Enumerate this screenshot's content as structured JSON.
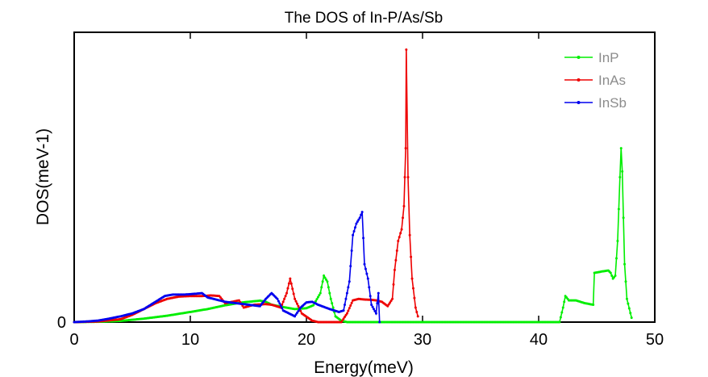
{
  "chart_data": {
    "type": "line",
    "title": "The DOS of In-P/As/Sb",
    "xlabel": "Energy(meV)",
    "ylabel": "DOS(meV-1)",
    "xlim": [
      0,
      50
    ],
    "ylim": [
      0,
      1
    ],
    "x_ticks": [
      0,
      10,
      20,
      30,
      40,
      50
    ],
    "x_tick_labels": [
      "0",
      "10",
      "20",
      "30",
      "40",
      "50"
    ],
    "y_ticks": [
      0
    ],
    "y_tick_labels": [
      "0"
    ],
    "grid": false,
    "legend_position": "top-right",
    "series": [
      {
        "name": "InP",
        "color": "#00ee00",
        "points": [
          [
            0,
            0
          ],
          [
            2,
            0.001
          ],
          [
            4,
            0.004
          ],
          [
            6,
            0.012
          ],
          [
            8,
            0.022
          ],
          [
            10,
            0.035
          ],
          [
            11.5,
            0.045
          ],
          [
            13,
            0.058
          ],
          [
            14.5,
            0.068
          ],
          [
            15.5,
            0.072
          ],
          [
            16,
            0.074
          ],
          [
            16.5,
            0.07
          ],
          [
            17,
            0.06
          ],
          [
            18,
            0.052
          ],
          [
            19,
            0.045
          ],
          [
            20,
            0.048
          ],
          [
            20.6,
            0.058
          ],
          [
            21.2,
            0.1
          ],
          [
            21.5,
            0.16
          ],
          [
            21.8,
            0.14
          ],
          [
            22.1,
            0.08
          ],
          [
            22.5,
            0.02
          ],
          [
            23,
            0.005
          ],
          [
            23.5,
            0
          ],
          [
            30,
            0
          ],
          [
            35,
            0
          ],
          [
            40,
            0
          ],
          [
            41.8,
            0
          ],
          [
            42.1,
            0.05
          ],
          [
            42.3,
            0.09
          ],
          [
            42.6,
            0.075
          ],
          [
            43.2,
            0.075
          ],
          [
            44,
            0.065
          ],
          [
            44.7,
            0.06
          ],
          [
            44.8,
            0.17
          ],
          [
            45.5,
            0.175
          ],
          [
            46,
            0.178
          ],
          [
            46.2,
            0.17
          ],
          [
            46.4,
            0.15
          ],
          [
            46.6,
            0.16
          ],
          [
            46.8,
            0.28
          ],
          [
            47,
            0.5
          ],
          [
            47.1,
            0.6
          ],
          [
            47.2,
            0.52
          ],
          [
            47.4,
            0.2
          ],
          [
            47.6,
            0.08
          ],
          [
            48,
            0.015
          ]
        ]
      },
      {
        "name": "InAs",
        "color": "#ee0000",
        "points": [
          [
            0,
            0
          ],
          [
            2,
            0.002
          ],
          [
            4,
            0.01
          ],
          [
            5,
            0.025
          ],
          [
            6,
            0.045
          ],
          [
            7,
            0.065
          ],
          [
            8,
            0.08
          ],
          [
            9,
            0.088
          ],
          [
            10,
            0.09
          ],
          [
            11,
            0.09
          ],
          [
            11.8,
            0.092
          ],
          [
            12.5,
            0.09
          ],
          [
            13,
            0.065
          ],
          [
            13.6,
            0.07
          ],
          [
            14.2,
            0.075
          ],
          [
            14.6,
            0.05
          ],
          [
            15.5,
            0.06
          ],
          [
            16.5,
            0.062
          ],
          [
            17,
            0.06
          ],
          [
            17.8,
            0.05
          ],
          [
            18.3,
            0.1
          ],
          [
            18.6,
            0.15
          ],
          [
            19,
            0.08
          ],
          [
            19.6,
            0.03
          ],
          [
            20.5,
            0.005
          ],
          [
            21,
            0
          ],
          [
            23,
            0
          ],
          [
            23.5,
            0.03
          ],
          [
            24,
            0.075
          ],
          [
            24.5,
            0.08
          ],
          [
            25,
            0.078
          ],
          [
            25.5,
            0.077
          ],
          [
            26,
            0.075
          ],
          [
            26.5,
            0.07
          ],
          [
            27,
            0.055
          ],
          [
            27.4,
            0.08
          ],
          [
            27.6,
            0.18
          ],
          [
            27.9,
            0.28
          ],
          [
            28.2,
            0.32
          ],
          [
            28.4,
            0.4
          ],
          [
            28.55,
            0.6
          ],
          [
            28.6,
            0.94
          ],
          [
            28.75,
            0.5
          ],
          [
            28.9,
            0.3
          ],
          [
            29.1,
            0.15
          ],
          [
            29.4,
            0.05
          ],
          [
            29.6,
            0.02
          ]
        ]
      },
      {
        "name": "InSb",
        "color": "#0000ee",
        "points": [
          [
            0,
            0
          ],
          [
            1,
            0.002
          ],
          [
            2,
            0.005
          ],
          [
            3,
            0.012
          ],
          [
            4,
            0.02
          ],
          [
            5,
            0.03
          ],
          [
            6,
            0.045
          ],
          [
            7,
            0.07
          ],
          [
            7.8,
            0.09
          ],
          [
            8.5,
            0.095
          ],
          [
            9.5,
            0.095
          ],
          [
            10.5,
            0.098
          ],
          [
            11,
            0.1
          ],
          [
            11.5,
            0.085
          ],
          [
            12,
            0.08
          ],
          [
            13,
            0.07
          ],
          [
            14,
            0.065
          ],
          [
            15,
            0.06
          ],
          [
            16,
            0.055
          ],
          [
            16.5,
            0.08
          ],
          [
            17,
            0.1
          ],
          [
            17.5,
            0.08
          ],
          [
            18,
            0.04
          ],
          [
            18.5,
            0.03
          ],
          [
            19,
            0.02
          ],
          [
            19.5,
            0.05
          ],
          [
            20,
            0.068
          ],
          [
            20.5,
            0.07
          ],
          [
            21,
            0.06
          ],
          [
            22,
            0.045
          ],
          [
            22.8,
            0.035
          ],
          [
            23.2,
            0.04
          ],
          [
            23.7,
            0.14
          ],
          [
            24,
            0.3
          ],
          [
            24.3,
            0.34
          ],
          [
            24.6,
            0.36
          ],
          [
            24.8,
            0.38
          ],
          [
            25,
            0.2
          ],
          [
            25.3,
            0.15
          ],
          [
            25.6,
            0.06
          ],
          [
            26,
            0.03
          ],
          [
            26.2,
            0.1
          ],
          [
            26.3,
            0
          ]
        ]
      }
    ]
  }
}
